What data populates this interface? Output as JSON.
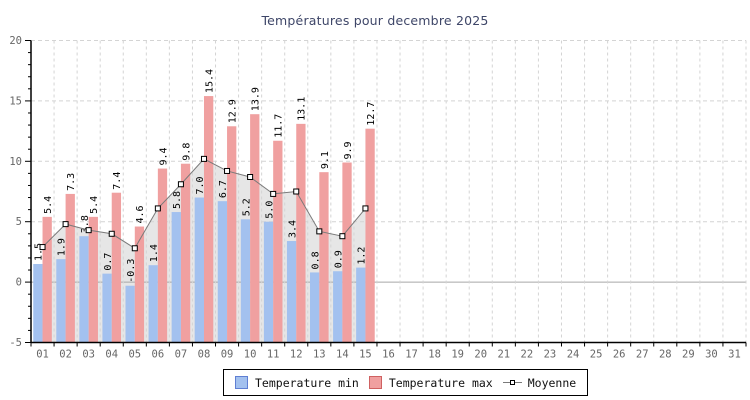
{
  "title": "Températures pour decembre 2025",
  "legend": {
    "min_label": "Temperature min",
    "max_label": "Temperature max",
    "avg_label": "Moyenne"
  },
  "colors": {
    "bar_min": "#a3c1ef",
    "bar_max": "#f0a0a0",
    "avg_line": "#7a7a7a",
    "avg_area": "#e6e6e6",
    "avg_marker_fill": "#ffffff",
    "avg_marker_border": "#000000",
    "grid": "#d4d4d4",
    "zero_line": "#a6a6a6",
    "axis": "#000000",
    "tick_label": "#666666",
    "value_label": "#000000",
    "title": "#3e4668"
  },
  "chart_data": {
    "type": "bar",
    "title": "Températures pour decembre 2025",
    "xlabel": "",
    "ylabel": "",
    "ylim": [
      -5,
      20
    ],
    "yticks": [
      -5,
      0,
      5,
      10,
      15,
      20
    ],
    "y_minor_step": 1,
    "grid": true,
    "legend_position": "bottom",
    "categories": [
      "01",
      "02",
      "03",
      "04",
      "05",
      "06",
      "07",
      "08",
      "09",
      "10",
      "11",
      "12",
      "13",
      "14",
      "15",
      "16",
      "17",
      "18",
      "19",
      "20",
      "21",
      "22",
      "23",
      "24",
      "25",
      "26",
      "27",
      "28",
      "29",
      "30",
      "31"
    ],
    "series": [
      {
        "name": "Temperature min",
        "type": "bar",
        "values": [
          1.5,
          1.9,
          3.8,
          0.7,
          -0.3,
          1.4,
          5.8,
          7.0,
          6.7,
          5.2,
          5.0,
          3.4,
          0.8,
          0.9,
          1.2
        ]
      },
      {
        "name": "Temperature max",
        "type": "bar",
        "values": [
          5.4,
          7.3,
          5.4,
          7.4,
          4.6,
          9.4,
          9.8,
          15.4,
          12.9,
          13.9,
          11.7,
          13.1,
          9.1,
          9.9,
          12.7
        ]
      },
      {
        "name": "Moyenne",
        "type": "line_area",
        "values": [
          2.9,
          4.8,
          4.3,
          4.0,
          2.8,
          6.1,
          8.1,
          10.2,
          9.2,
          8.7,
          7.3,
          7.5,
          4.2,
          3.8,
          6.1
        ]
      }
    ]
  }
}
